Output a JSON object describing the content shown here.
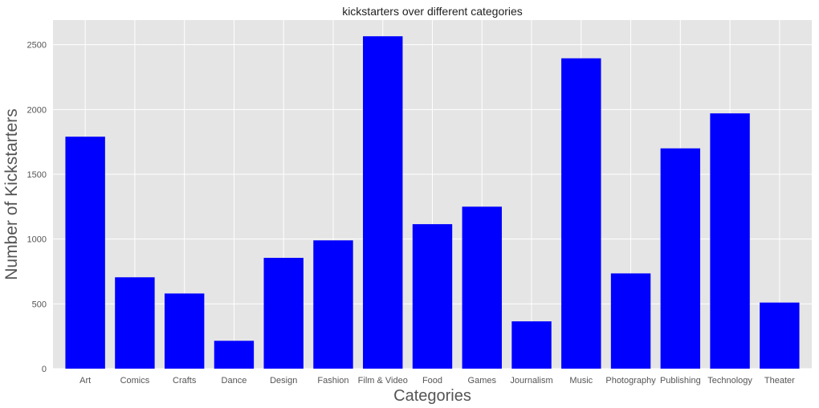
{
  "chart_data": {
    "type": "bar",
    "title": "kickstarters over different categories",
    "xlabel": "Categories",
    "ylabel": "Number of Kickstarters",
    "categories": [
      "Art",
      "Comics",
      "Crafts",
      "Dance",
      "Design",
      "Fashion",
      "Film & Video",
      "Food",
      "Games",
      "Journalism",
      "Music",
      "Photography",
      "Publishing",
      "Technology",
      "Theater"
    ],
    "values": [
      1790,
      705,
      580,
      215,
      855,
      990,
      2565,
      1115,
      1250,
      365,
      2395,
      735,
      1700,
      1970,
      510
    ],
    "yticks": [
      0,
      500,
      1000,
      1500,
      2000,
      2500
    ],
    "ylim": [
      0,
      2690
    ],
    "grid": true,
    "bar_color": "#0000ff",
    "background_color": "#e5e5e5",
    "grid_color": "#ffffff"
  }
}
